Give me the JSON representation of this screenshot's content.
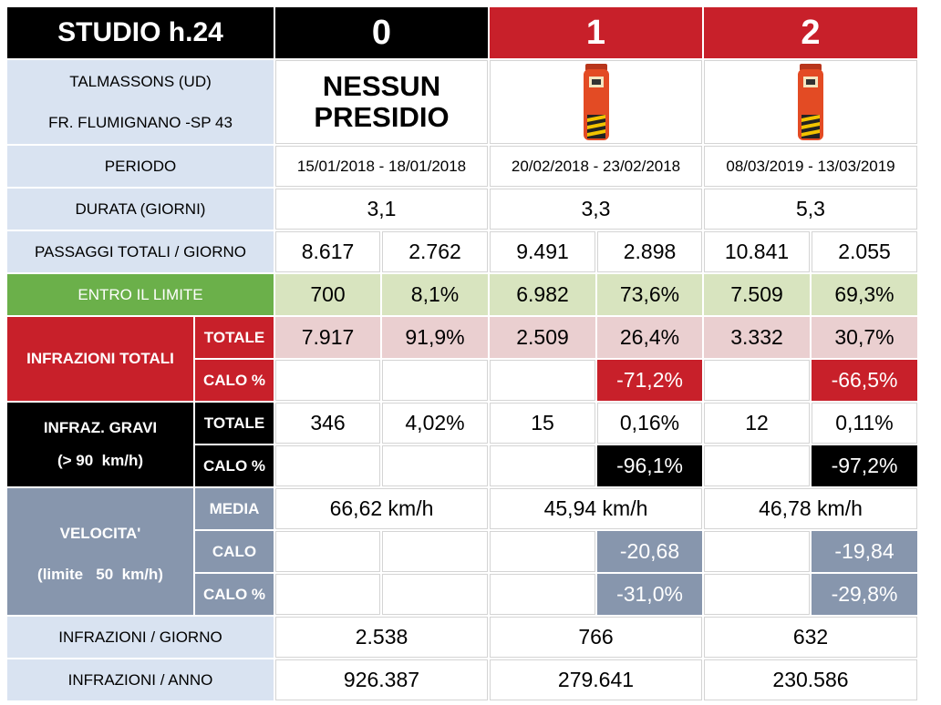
{
  "header": {
    "title": "STUDIO h.24",
    "col0": "0",
    "col1": "1",
    "col2": "2"
  },
  "location": {
    "line1": "TALMASSONS (UD)",
    "line2": "FR. FLUMIGNANO -SP 43",
    "no_presidio_1": "NESSUN",
    "no_presidio_2": "PRESIDIO",
    "device_icon": "speed-control-box-icon"
  },
  "rows": {
    "periodo": {
      "label": "PERIODO",
      "c0": "15/01/2018 - 18/01/2018",
      "c1": "20/02/2018 - 23/02/2018",
      "c2": "08/03/2019 - 13/03/2019"
    },
    "durata": {
      "label": "DURATA (GIORNI)",
      "c0": "3,1",
      "c1": "3,3",
      "c2": "5,3"
    },
    "passaggi": {
      "label": "PASSAGGI TOTALI / GIORNO",
      "c0a": "8.617",
      "c0b": "2.762",
      "c1a": "9.491",
      "c1b": "2.898",
      "c2a": "10.841",
      "c2b": "2.055"
    },
    "entro": {
      "label": "ENTRO IL LIMITE",
      "c0a": "700",
      "c0b": "8,1%",
      "c1a": "6.982",
      "c1b": "73,6%",
      "c2a": "7.509",
      "c2b": "69,3%"
    },
    "infrazioni": {
      "label": "INFRAZIONI TOTALI",
      "totale_label": "TOTALE",
      "calo_label": "CALO %",
      "tot": {
        "c0a": "7.917",
        "c0b": "91,9%",
        "c1a": "2.509",
        "c1b": "26,4%",
        "c2a": "3.332",
        "c2b": "30,7%"
      },
      "calo": {
        "c1b": "-71,2%",
        "c2b": "-66,5%"
      }
    },
    "gravi": {
      "label1": "INFRAZ. GRAVI",
      "label2": "(> 90  km/h)",
      "totale_label": "TOTALE",
      "calo_label": "CALO %",
      "tot": {
        "c0a": "346",
        "c0b": "4,02%",
        "c1a": "15",
        "c1b": "0,16%",
        "c2a": "12",
        "c2b": "0,11%"
      },
      "calo": {
        "c1b": "-96,1%",
        "c2b": "-97,2%"
      }
    },
    "velocita": {
      "label1": "VELOCITA'",
      "label2": "(limite   50  km/h)",
      "media_label": "MEDIA",
      "calo_label": "CALO",
      "calo_pct_label": "CALO %",
      "media": {
        "c0": "66,62 km/h",
        "c1": "45,94 km/h",
        "c2": "46,78 km/h"
      },
      "calo": {
        "c1b": "-20,68",
        "c2b": "-19,84"
      },
      "calo_pct": {
        "c1b": "-31,0%",
        "c2b": "-29,8%"
      }
    },
    "inf_giorno": {
      "label": "INFRAZIONI / GIORNO",
      "c0": "2.538",
      "c1": "766",
      "c2": "632"
    },
    "inf_anno": {
      "label": "INFRAZIONI / ANNO",
      "c0": "926.387",
      "c1": "279.641",
      "c2": "230.586"
    }
  },
  "colors": {
    "red": "#c8202a",
    "black": "#000000",
    "label_blue": "#d9e3f1",
    "green_label": "#6bb04a",
    "green_cell": "#d8e4bf",
    "pink_cell": "#eacfd0",
    "slate": "#8796ad"
  }
}
